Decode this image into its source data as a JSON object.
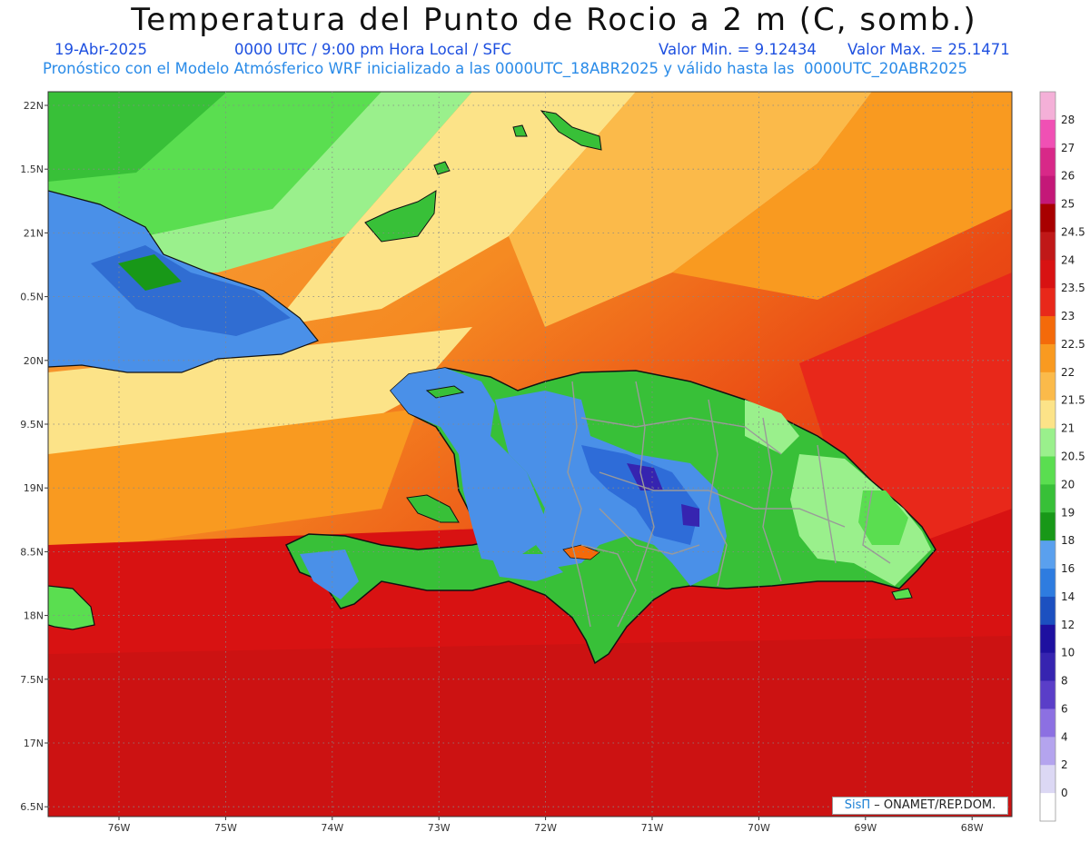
{
  "header": {
    "title": "Temperatura del Punto de Rocio a 2 m (C, somb.)",
    "date": "19-Abr-2025",
    "time": "0000 UTC / 9:00 pm Hora Local / SFC",
    "min": "Valor Min. = 9.12434",
    "max": "Valor Max. = 25.1471",
    "forecast": "Pronóstico con el Modelo Atmósferico WRF inicializado a las 0000UTC_18ABR2025 y válido hasta las  0000UTC_20ABR2025"
  },
  "axes": {
    "lat_labels": [
      "22N",
      "1.5N",
      "21N",
      "0.5N",
      "20N",
      "9.5N",
      "19N",
      "8.5N",
      "18N",
      "7.5N",
      "17N",
      "6.5N"
    ],
    "lon_labels": [
      "76W",
      "75W",
      "74W",
      "73W",
      "72W",
      "71W",
      "70W",
      "69W",
      "68W"
    ]
  },
  "colorbar": {
    "levels": [
      "0",
      "2",
      "4",
      "6",
      "8",
      "10",
      "12",
      "14",
      "16",
      "18",
      "19",
      "20",
      "20.5",
      "21",
      "21.5",
      "22",
      "22.5",
      "23",
      "23.5",
      "24",
      "24.5",
      "25",
      "26",
      "27",
      "28"
    ],
    "colors": [
      "#ffffff",
      "#dcd8f4",
      "#b4a4ee",
      "#8c70e2",
      "#5a3ec8",
      "#3624b0",
      "#1e10a0",
      "#1c50c0",
      "#2e7ce0",
      "#5aa0ee",
      "#189818",
      "#38c038",
      "#5ade50",
      "#9af08c",
      "#fce388",
      "#fbba4a",
      "#f99a20",
      "#f46a0a",
      "#e8281a",
      "#d81212",
      "#c01818",
      "#a80000",
      "#c41878",
      "#d82888",
      "#f050b4",
      "#f4b0d8"
    ]
  },
  "credit": {
    "sis": "SisΠ",
    "text": " – ONAMET/REP.DOM."
  }
}
